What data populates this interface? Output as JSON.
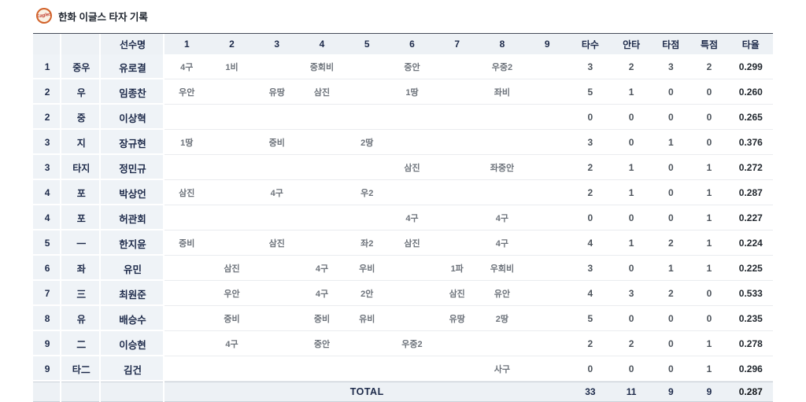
{
  "page": {
    "title": "한화 이글스 타자 기록",
    "logo_text": "Eagles"
  },
  "colors": {
    "header_bg": "#edf1f5",
    "left_column_bg": "#eff3f7",
    "text_navy": "#1d2a4a",
    "inning_text": "#6d737b",
    "logo_ring_orange": "#d2622a"
  },
  "table": {
    "headers": [
      "",
      "",
      "선수명",
      "1",
      "2",
      "3",
      "4",
      "5",
      "6",
      "7",
      "8",
      "9",
      "타수",
      "안타",
      "타점",
      "특점",
      "타율"
    ],
    "players": [
      {
        "order": "1",
        "pos": "중우",
        "name": "유로결",
        "innings": [
          "4구",
          "1비",
          "",
          "중회비",
          "",
          "중안",
          "",
          "우중2",
          ""
        ],
        "ab": "3",
        "hits": "2",
        "rbi": "3",
        "runs": "2",
        "avg": "0.299"
      },
      {
        "order": "2",
        "pos": "우",
        "name": "임종찬",
        "innings": [
          "우안",
          "",
          "유땅",
          "삼진",
          "",
          "1땅",
          "",
          "좌비",
          ""
        ],
        "ab": "5",
        "hits": "1",
        "rbi": "0",
        "runs": "0",
        "avg": "0.260"
      },
      {
        "order": "2",
        "pos": "중",
        "name": "이상혁",
        "innings": [
          "",
          "",
          "",
          "",
          "",
          "",
          "",
          "",
          ""
        ],
        "ab": "0",
        "hits": "0",
        "rbi": "0",
        "runs": "0",
        "avg": "0.265"
      },
      {
        "order": "3",
        "pos": "지",
        "name": "장규현",
        "innings": [
          "1땅",
          "",
          "중비",
          "",
          "2땅",
          "",
          "",
          "",
          ""
        ],
        "ab": "3",
        "hits": "0",
        "rbi": "1",
        "runs": "0",
        "avg": "0.376"
      },
      {
        "order": "3",
        "pos": "타지",
        "name": "정민규",
        "innings": [
          "",
          "",
          "",
          "",
          "",
          "삼진",
          "",
          "좌중안",
          ""
        ],
        "ab": "2",
        "hits": "1",
        "rbi": "0",
        "runs": "1",
        "avg": "0.272"
      },
      {
        "order": "4",
        "pos": "포",
        "name": "박상언",
        "innings": [
          "삼진",
          "",
          "4구",
          "",
          "우2",
          "",
          "",
          "",
          ""
        ],
        "ab": "2",
        "hits": "1",
        "rbi": "0",
        "runs": "1",
        "avg": "0.287"
      },
      {
        "order": "4",
        "pos": "포",
        "name": "허관회",
        "innings": [
          "",
          "",
          "",
          "",
          "",
          "4구",
          "",
          "4구",
          ""
        ],
        "ab": "0",
        "hits": "0",
        "rbi": "0",
        "runs": "1",
        "avg": "0.227"
      },
      {
        "order": "5",
        "pos": "一",
        "name": "한지윤",
        "innings": [
          "중비",
          "",
          "삼진",
          "",
          "좌2",
          "삼진",
          "",
          "4구",
          ""
        ],
        "ab": "4",
        "hits": "1",
        "rbi": "2",
        "runs": "1",
        "avg": "0.224"
      },
      {
        "order": "6",
        "pos": "좌",
        "name": "유민",
        "innings": [
          "",
          "삼진",
          "",
          "4구",
          "우비",
          "",
          "1파",
          "우회비",
          ""
        ],
        "ab": "3",
        "hits": "0",
        "rbi": "1",
        "runs": "1",
        "avg": "0.225"
      },
      {
        "order": "7",
        "pos": "三",
        "name": "최원준",
        "innings": [
          "",
          "우안",
          "",
          "4구",
          "2안",
          "",
          "삼진",
          "유안",
          ""
        ],
        "ab": "4",
        "hits": "3",
        "rbi": "2",
        "runs": "0",
        "avg": "0.533"
      },
      {
        "order": "8",
        "pos": "유",
        "name": "배승수",
        "innings": [
          "",
          "중비",
          "",
          "중비",
          "유비",
          "",
          "유땅",
          "2땅",
          ""
        ],
        "ab": "5",
        "hits": "0",
        "rbi": "0",
        "runs": "0",
        "avg": "0.235"
      },
      {
        "order": "9",
        "pos": "二",
        "name": "이승현",
        "innings": [
          "",
          "4구",
          "",
          "중안",
          "",
          "우중2",
          "",
          "",
          ""
        ],
        "ab": "2",
        "hits": "2",
        "rbi": "0",
        "runs": "1",
        "avg": "0.278"
      },
      {
        "order": "9",
        "pos": "타二",
        "name": "김건",
        "innings": [
          "",
          "",
          "",
          "",
          "",
          "",
          "",
          "사구",
          ""
        ],
        "ab": "0",
        "hits": "0",
        "rbi": "0",
        "runs": "1",
        "avg": "0.296"
      }
    ],
    "total": {
      "label": "TOTAL",
      "ab": "33",
      "hits": "11",
      "rbi": "9",
      "runs": "9",
      "avg": "0.287"
    }
  }
}
